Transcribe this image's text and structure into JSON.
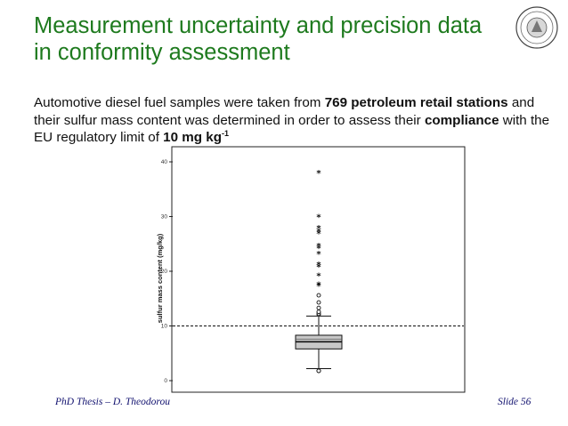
{
  "slide": {
    "title": "Measurement uncertainty and precision data in conformity assessment",
    "logo_icon": "university-seal-logo",
    "description": {
      "part1": "Automotive diesel fuel samples were taken from ",
      "bold1": "769 petroleum retail stations",
      "part2": " and their sulfur mass content was determined in order to assess their ",
      "bold2": "compliance",
      "part3": " with the EU regulatory limit of ",
      "bold3": "10 mg kg",
      "sup3": "-1"
    },
    "footer": {
      "left": "PhD Thesis – D. Theodorou",
      "right": "Slide 56"
    }
  },
  "chart_data": {
    "type": "boxplot",
    "ylabel": "sulfur mass content (mg/kg)",
    "ylim": [
      -1,
      42
    ],
    "yticks": [
      0,
      10,
      20,
      30,
      40
    ],
    "grid": false,
    "reference_line": {
      "y": 10,
      "style": "dashed"
    },
    "box": {
      "whisker_low": 2.2,
      "q1": 5.8,
      "median": 7.1,
      "q3": 8.3,
      "whisker_high": 11.8,
      "mean_line": 7.6
    },
    "min_point": 1.8,
    "outliers_circle": [
      12.1,
      12.3,
      12.6,
      13.3,
      14.3,
      15.6
    ],
    "outliers_star": [
      17.3,
      17.6,
      19.2,
      20.8,
      21.2,
      23.2,
      24.2,
      24.6,
      26.9,
      27.3,
      27.9,
      29.9,
      38.0
    ]
  }
}
